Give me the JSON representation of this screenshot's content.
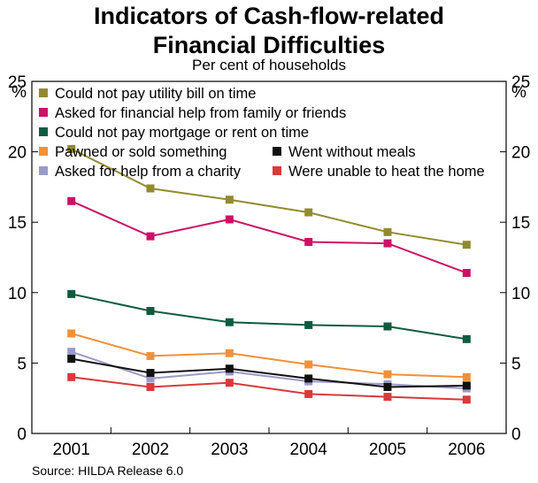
{
  "title_line1": "Indicators of Cash-flow-related",
  "title_line2": "Financial Difficulties",
  "subtitle": "Per cent of households",
  "source": "Source: HILDA Release 6.0",
  "chart_data": {
    "type": "line",
    "title": "Indicators of Cash-flow-related Financial Difficulties",
    "subtitle": "Per cent of households",
    "ylabel_left": "%",
    "ylabel_right": "%",
    "x": [
      "2001",
      "2002",
      "2003",
      "2004",
      "2005",
      "2006"
    ],
    "ylim": [
      0,
      25
    ],
    "yticks": [
      "0",
      "5",
      "10",
      "15",
      "20",
      "25"
    ],
    "grid": false,
    "legend_position": "top-left",
    "series": [
      {
        "name": "Could not pay utility bill on time",
        "color": "#938a2f",
        "values": [
          20.2,
          17.4,
          16.6,
          15.7,
          14.3,
          13.4
        ]
      },
      {
        "name": "Asked for financial help from family or friends",
        "color": "#cc1166",
        "values": [
          16.5,
          14.0,
          15.2,
          13.6,
          13.5,
          11.4
        ]
      },
      {
        "name": "Could not pay mortgage or rent on time",
        "color": "#0d5c3e",
        "values": [
          9.9,
          8.7,
          7.9,
          7.7,
          7.6,
          6.7
        ]
      },
      {
        "name": "Pawned or sold something",
        "color": "#f0913a",
        "values": [
          7.1,
          5.5,
          5.7,
          4.9,
          4.2,
          4.0
        ]
      },
      {
        "name": "Asked for help from a charity",
        "color": "#9a9ac8",
        "values": [
          5.8,
          3.9,
          4.4,
          3.7,
          3.5,
          3.2
        ]
      },
      {
        "name": "Went without meals",
        "color": "#111111",
        "values": [
          5.3,
          4.3,
          4.6,
          3.9,
          3.3,
          3.4
        ]
      },
      {
        "name": "Were unable to heat the home",
        "color": "#d9393a",
        "values": [
          4.0,
          3.3,
          3.6,
          2.8,
          2.6,
          2.4
        ]
      }
    ]
  }
}
